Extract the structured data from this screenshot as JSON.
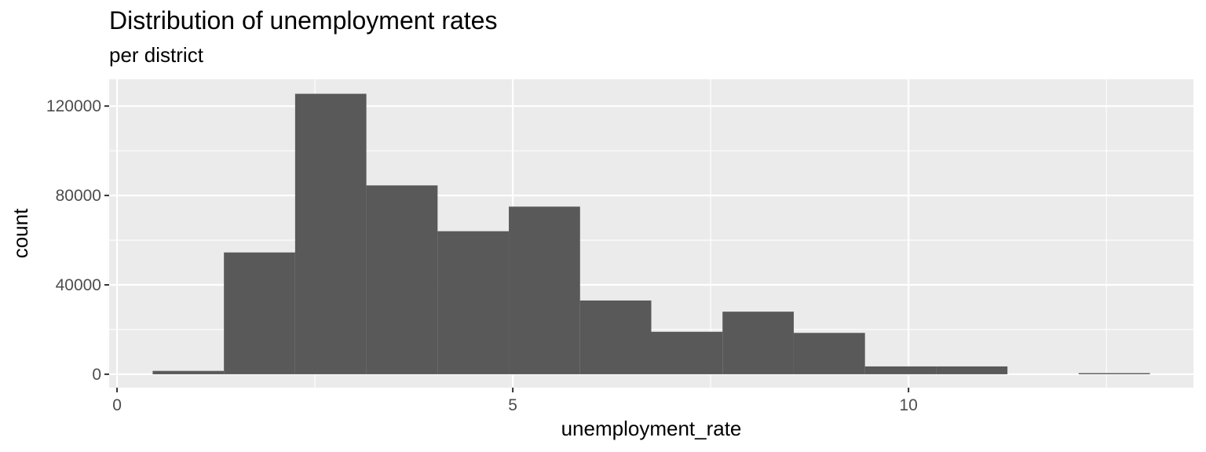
{
  "chart_data": {
    "type": "bar",
    "title": "Distribution of unemployment rates",
    "subtitle": "per district",
    "xlabel": "unemployment_rate",
    "ylabel": "count",
    "xlim": [
      -0.1,
      13.6
    ],
    "ylim": [
      -6000,
      132000
    ],
    "x_ticks": [
      0,
      5,
      10
    ],
    "x_tick_labels": [
      "0",
      "5",
      "10"
    ],
    "y_ticks": [
      0,
      40000,
      80000,
      120000
    ],
    "y_tick_labels": [
      "0",
      "40000",
      "80000",
      "120000"
    ],
    "grid": true,
    "bins": [
      {
        "x0": 0.45,
        "x1": 1.35,
        "count": 1500
      },
      {
        "x0": 1.35,
        "x1": 2.25,
        "count": 54500
      },
      {
        "x0": 2.25,
        "x1": 3.15,
        "count": 125500
      },
      {
        "x0": 3.15,
        "x1": 4.05,
        "count": 84500
      },
      {
        "x0": 4.05,
        "x1": 4.95,
        "count": 64000
      },
      {
        "x0": 4.95,
        "x1": 5.85,
        "count": 75000
      },
      {
        "x0": 5.85,
        "x1": 6.75,
        "count": 33000
      },
      {
        "x0": 6.75,
        "x1": 7.65,
        "count": 19000
      },
      {
        "x0": 7.65,
        "x1": 8.55,
        "count": 28000
      },
      {
        "x0": 8.55,
        "x1": 9.45,
        "count": 18500
      },
      {
        "x0": 9.45,
        "x1": 10.35,
        "count": 3500
      },
      {
        "x0": 10.35,
        "x1": 11.25,
        "count": 3500
      },
      {
        "x0": 11.25,
        "x1": 12.15,
        "count": 0
      },
      {
        "x0": 12.15,
        "x1": 13.05,
        "count": 500
      }
    ]
  },
  "colors": {
    "panel_background": "#ebebeb",
    "grid_major": "#ffffff",
    "bar_fill": "#595959",
    "tick_text": "#4d4d4d"
  }
}
